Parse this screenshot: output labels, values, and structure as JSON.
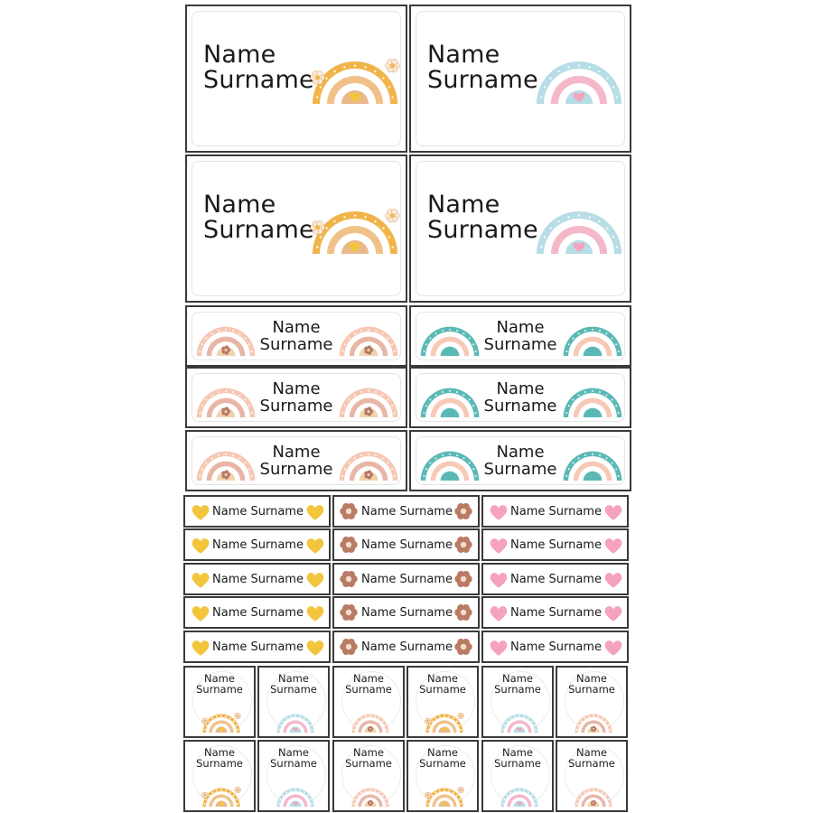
{
  "sheet": {
    "name": "Name",
    "surname": "Surname",
    "full_name": "Name Surname"
  },
  "colors": {
    "orange_rainbow": [
      "#f1b44a",
      "#ffffff",
      "#f0c28a",
      "#e9b98c"
    ],
    "pastel_rainbow": [
      "#b7dde6",
      "#ffffff",
      "#f4b8c8",
      "#ffffff"
    ],
    "peach_rainbow": [
      "#f6c8b4",
      "#e8b6a7",
      "#f2d3b0"
    ],
    "teal_rainbow": [
      "#5bb9b5",
      "#ffffff",
      "#f7c9b6",
      "#f0a99a"
    ],
    "yellow_heart": "#f2c53d",
    "pink_heart": "#f5a3bd",
    "brown_flower": "#b97b63"
  },
  "icons": [
    "orange-rainbow-icon",
    "pastel-rainbow-icon",
    "peach-rainbow-icon",
    "teal-rainbow-icon",
    "yellow-heart-icon",
    "brown-flower-icon",
    "pink-heart-icon"
  ]
}
